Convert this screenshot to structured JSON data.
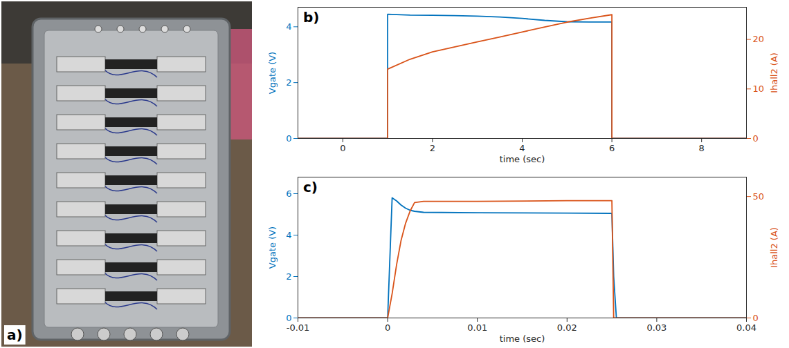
{
  "photo": {
    "label": "a)"
  },
  "chart_data": [
    {
      "type": "line",
      "title": "b)",
      "xlabel": "time (sec)",
      "ylabel": "Vgate (V)",
      "y2label": "Ihall2 (A)",
      "x": [
        -1,
        1,
        1,
        1.5,
        2,
        2.5,
        3,
        3.5,
        4,
        4.5,
        5,
        5.5,
        6,
        6,
        9
      ],
      "xlim": [
        -1,
        9
      ],
      "xticks": [
        0,
        2,
        4,
        6,
        8
      ],
      "ylim": [
        0,
        4.7
      ],
      "yticks": [
        0,
        2,
        4
      ],
      "y2lim": [
        0,
        26.5
      ],
      "y2ticks": [
        0,
        10,
        20
      ],
      "series": [
        {
          "color": "#0072BD",
          "values": [
            0,
            0,
            4.45,
            4.42,
            4.41,
            4.4,
            4.38,
            4.35,
            4.3,
            4.23,
            4.18,
            4.17,
            4.17,
            0,
            0
          ]
        },
        {
          "color": "#D95319",
          "axis": "y2",
          "values": [
            0,
            0,
            14,
            16,
            17.5,
            18.5,
            19.5,
            20.5,
            21.5,
            22.5,
            23.5,
            24.3,
            25,
            0,
            0
          ]
        }
      ]
    },
    {
      "type": "line",
      "title": "c)",
      "xlabel": "time (sec)",
      "ylabel": "Vgate (V)",
      "y2label": "Ihall2 (A)",
      "x": [
        -0.01,
        0,
        0.0005,
        0.001,
        0.0015,
        0.002,
        0.0025,
        0.003,
        0.004,
        0.01,
        0.02,
        0.025,
        0.0252,
        0.0255,
        0.04
      ],
      "xlim": [
        -0.01,
        0.04
      ],
      "xticks": [
        -0.01,
        0,
        0.01,
        0.02,
        0.03,
        0.04
      ],
      "ylim": [
        0,
        6.8
      ],
      "yticks": [
        0,
        2,
        4,
        6
      ],
      "y2lim": [
        0,
        58
      ],
      "y2ticks": [
        0,
        50
      ],
      "series": [
        {
          "color": "#0072BD",
          "values": [
            0,
            0,
            5.8,
            5.65,
            5.45,
            5.3,
            5.2,
            5.15,
            5.1,
            5.08,
            5.06,
            5.05,
            2,
            0,
            0
          ]
        },
        {
          "color": "#D95319",
          "axis": "y2",
          "values": [
            0,
            0,
            10,
            22,
            32,
            39,
            44,
            47.5,
            48,
            48,
            48.3,
            48.3,
            0,
            0,
            0
          ]
        }
      ]
    }
  ]
}
